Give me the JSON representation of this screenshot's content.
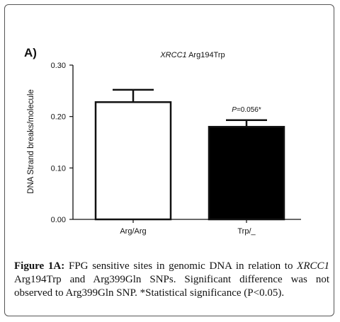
{
  "panel_label": "A)",
  "chart_data": {
    "type": "bar",
    "title_gene": "XRCC1",
    "title_rest": " Arg194Trp",
    "ylabel": "DNA Strand breaks/molecule",
    "xlabel": "",
    "ylim": [
      0,
      0.3
    ],
    "yticks": [
      0.0,
      0.1,
      0.2,
      0.3
    ],
    "ytick_labels": [
      "0.00",
      "0.10",
      "0.20",
      "0.30"
    ],
    "categories": [
      "Arg/Arg",
      "Trp/_"
    ],
    "values": [
      0.228,
      0.18
    ],
    "errors": [
      0.024,
      0.013
    ],
    "bar_colors": [
      "#ffffff",
      "#000000"
    ],
    "annotations": [
      {
        "category_index": 1,
        "p_label": "P",
        "text": "=0.056*"
      }
    ],
    "grid": false
  },
  "caption": {
    "figure_label": "Figure 1A:",
    "text_1": " FPG sensitive sites in genomic DNA in relation to ",
    "gene": "XRCC1",
    "text_2": " Arg194Trp and Arg399Gln SNPs. Significant difference was not observed to Arg399Gln SNP. *Statistical significance (P<0.05)."
  }
}
